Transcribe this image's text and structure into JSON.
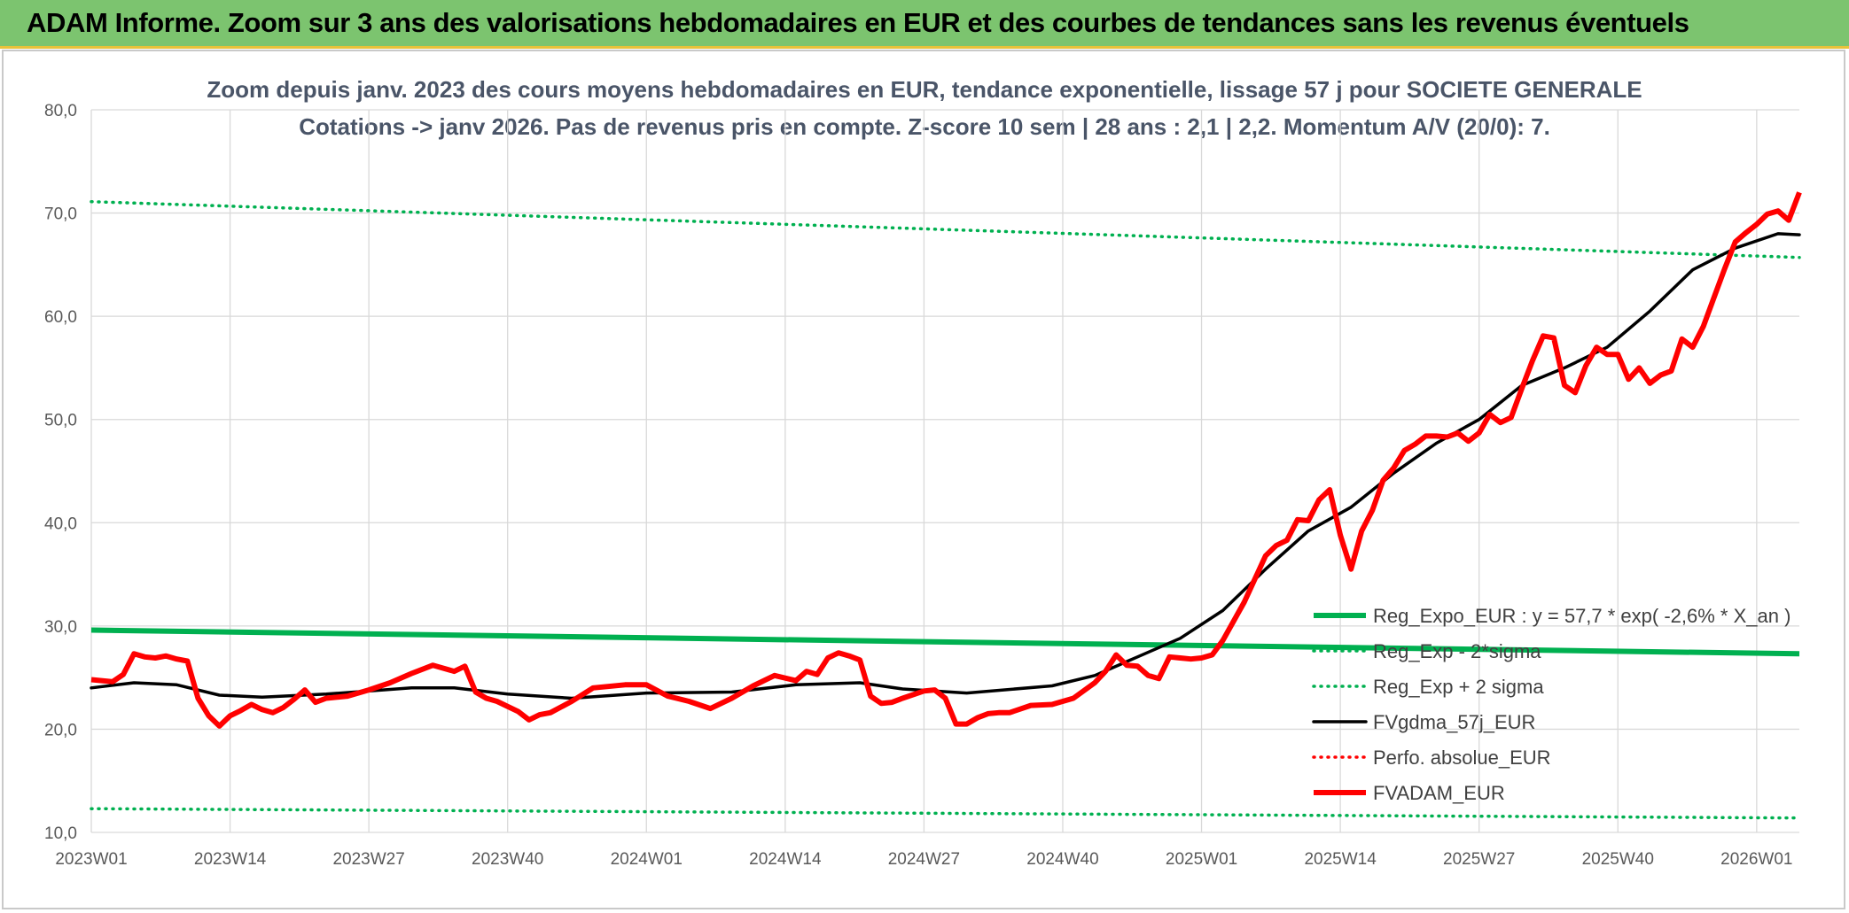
{
  "header": {
    "title": "ADAM Informe. Zoom sur 3 ans des valorisations hebdomadaires en EUR et des courbes de tendances sans les revenus éventuels"
  },
  "colors": {
    "banner": "#7cc46f",
    "regression": "#00b050",
    "price": "#ff0000",
    "moving_average": "#000000",
    "perfo": "#ff0000",
    "grid": "#d9d9d9"
  },
  "chart_data": {
    "type": "line",
    "title": "Zoom depuis janv. 2023 des cours moyens hebdomadaires en EUR, tendance exponentielle, lissage 57 j pour SOCIETE GENERALE",
    "subtitle": "Cotations -> janv 2026. Pas de revenus pris en compte. Z-score 10 sem | 28 ans : 2,1  | 2,2. Momentum A/V (20/0): 7.",
    "xlabel": "",
    "ylabel": "",
    "ylim": [
      10,
      80
    ],
    "yticks": [
      "10,0",
      "20,0",
      "30,0",
      "40,0",
      "50,0",
      "60,0",
      "70,0",
      "80,0"
    ],
    "xlim": [
      0,
      160
    ],
    "xticks": [
      {
        "x": 0,
        "label": "2023W01"
      },
      {
        "x": 13,
        "label": "2023W14"
      },
      {
        "x": 26,
        "label": "2023W27"
      },
      {
        "x": 39,
        "label": "2023W40"
      },
      {
        "x": 52,
        "label": "2024W01"
      },
      {
        "x": 65,
        "label": "2024W14"
      },
      {
        "x": 78,
        "label": "2024W27"
      },
      {
        "x": 91,
        "label": "2024W40"
      },
      {
        "x": 104,
        "label": "2025W01"
      },
      {
        "x": 117,
        "label": "2025W14"
      },
      {
        "x": 130,
        "label": "2025W27"
      },
      {
        "x": 143,
        "label": "2025W40"
      },
      {
        "x": 156,
        "label": "2026W01"
      }
    ],
    "grid": true,
    "legend_position": "bottom-right",
    "series": [
      {
        "name": "Reg_Expo_EUR : y = 57,7 * exp( -2,6% *  X_an )",
        "style": "solid-thick",
        "color": "#00b050",
        "x": [
          0,
          160
        ],
        "values": [
          29.6,
          27.3
        ]
      },
      {
        "name": "Reg_Exp - 2*sigma",
        "style": "dotted",
        "color": "#00b050",
        "x": [
          0,
          160
        ],
        "values": [
          12.3,
          11.4
        ]
      },
      {
        "name": "Reg_Exp + 2 sigma",
        "style": "dotted",
        "color": "#00b050",
        "x": [
          0,
          160
        ],
        "values": [
          71.1,
          65.7
        ]
      },
      {
        "name": "FVgdma_57j_EUR",
        "style": "solid",
        "color": "#000000",
        "x": [
          0,
          4,
          8,
          12,
          16,
          22,
          30,
          34,
          39,
          45,
          52,
          60,
          66,
          72,
          76,
          82,
          90,
          94,
          98,
          102,
          106,
          110,
          114,
          118,
          122,
          126,
          130,
          134,
          138,
          142,
          146,
          150,
          154,
          158,
          160
        ],
        "values": [
          24.0,
          24.5,
          24.3,
          23.3,
          23.1,
          23.4,
          24.0,
          24.0,
          23.4,
          23.0,
          23.5,
          23.6,
          24.3,
          24.5,
          23.9,
          23.5,
          24.2,
          25.2,
          27.0,
          28.8,
          31.5,
          35.5,
          39.2,
          41.5,
          44.8,
          47.7,
          50.0,
          53.3,
          55.0,
          57.0,
          60.5,
          64.5,
          66.6,
          68.0,
          67.9
        ]
      },
      {
        "name": "Perfo. absolue_EUR",
        "style": "dotted",
        "color": "#ff0000",
        "x": [],
        "values": []
      },
      {
        "name": "FVADAM_EUR",
        "style": "solid-thick",
        "color": "#ff0000",
        "x": [
          0,
          2,
          3,
          4,
          5,
          6,
          7,
          8,
          9,
          10,
          11,
          12,
          13,
          14,
          15,
          16,
          17,
          18,
          19,
          20,
          21,
          22,
          24,
          26,
          28,
          30,
          32,
          34,
          35,
          36,
          37,
          38,
          40,
          41,
          42,
          43,
          45,
          47,
          50,
          52,
          54,
          56,
          58,
          60,
          62,
          64,
          66,
          67,
          68,
          69,
          70,
          71,
          72,
          73,
          74,
          75,
          76,
          78,
          79,
          80,
          81,
          82,
          83,
          84,
          85,
          86,
          88,
          90,
          92,
          94,
          95,
          96,
          97,
          98,
          99,
          100,
          101,
          102,
          103,
          104,
          105,
          106,
          108,
          110,
          111,
          112,
          113,
          114,
          115,
          116,
          117,
          118,
          119,
          120,
          121,
          122,
          123,
          124,
          125,
          126,
          127,
          128,
          129,
          130,
          131,
          132,
          133,
          134,
          135,
          136,
          137,
          138,
          139,
          140,
          141,
          142,
          143,
          144,
          145,
          146,
          147,
          148,
          149,
          150,
          151,
          152,
          153,
          154,
          155,
          156,
          157,
          158,
          159,
          160
        ],
        "values": [
          24.8,
          24.6,
          25.3,
          27.3,
          27.0,
          26.9,
          27.1,
          26.8,
          26.6,
          23.0,
          21.3,
          20.3,
          21.3,
          21.8,
          22.4,
          21.9,
          21.6,
          22.1,
          22.9,
          23.8,
          22.6,
          23.0,
          23.2,
          23.8,
          24.5,
          25.4,
          26.2,
          25.6,
          26.1,
          23.6,
          23.0,
          22.7,
          21.7,
          20.9,
          21.4,
          21.6,
          22.7,
          24.0,
          24.3,
          24.3,
          23.2,
          22.7,
          22.0,
          23.0,
          24.2,
          25.2,
          24.7,
          25.6,
          25.3,
          26.9,
          27.4,
          27.1,
          26.7,
          23.2,
          22.5,
          22.6,
          23.0,
          23.7,
          23.8,
          23.0,
          20.5,
          20.5,
          21.1,
          21.5,
          21.6,
          21.6,
          22.3,
          22.4,
          23.0,
          24.5,
          25.6,
          27.2,
          26.2,
          26.1,
          25.2,
          24.9,
          27.0,
          26.9,
          26.8,
          26.9,
          27.2,
          28.6,
          32.3,
          36.8,
          37.8,
          38.3,
          40.3,
          40.2,
          42.2,
          43.2,
          38.8,
          35.5,
          39.2,
          41.2,
          44.1,
          45.3,
          47.0,
          47.6,
          48.4,
          48.4,
          48.3,
          48.7,
          47.9,
          48.7,
          50.5,
          49.7,
          50.2,
          53.0,
          55.7,
          58.1,
          57.9,
          53.3,
          52.6,
          55.2,
          57.0,
          56.3,
          56.3,
          53.9,
          55.0,
          53.5,
          54.3,
          54.7,
          57.8,
          57.0,
          59.0,
          61.8,
          64.6,
          67.2,
          68.1,
          68.9,
          69.9,
          70.2,
          69.3,
          72.0
        ]
      }
    ]
  }
}
